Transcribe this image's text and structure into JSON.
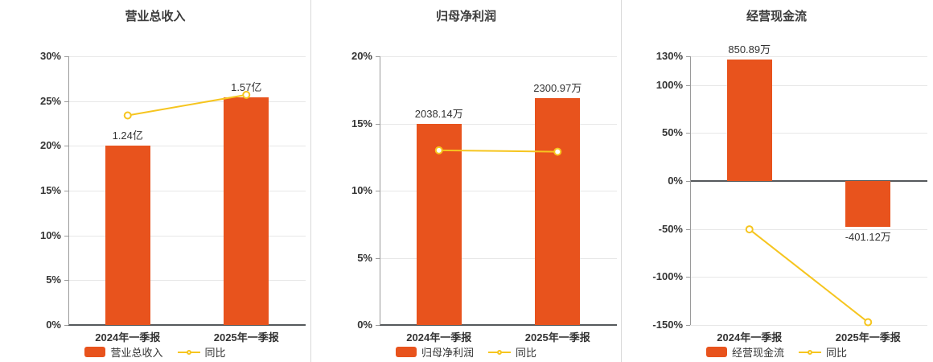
{
  "page": {
    "background": "#ffffff"
  },
  "chart_data": [
    {
      "type": "bar+line",
      "title": "营业总收入",
      "categories": [
        "2024年一季报",
        "2025年一季报"
      ],
      "bar_series": {
        "name": "营业总收入",
        "value_labels": [
          "1.24亿",
          "1.57亿"
        ],
        "display_values_pct": [
          20.0,
          25.4
        ]
      },
      "line_series": {
        "name": "同比",
        "values_pct": [
          23.4,
          25.7
        ]
      },
      "y_axis": {
        "min": 0,
        "max": 30,
        "ticks": [
          0,
          5,
          10,
          15,
          20,
          25,
          30
        ],
        "unit": "%"
      },
      "colors": {
        "bar": "#e8531d",
        "line": "#f6c51f"
      }
    },
    {
      "type": "bar+line",
      "title": "归母净利润",
      "categories": [
        "2024年一季报",
        "2025年一季报"
      ],
      "bar_series": {
        "name": "归母净利润",
        "value_labels": [
          "2038.14万",
          "2300.97万"
        ],
        "display_values_pct": [
          15.0,
          16.9
        ]
      },
      "line_series": {
        "name": "同比",
        "values_pct": [
          13.0,
          12.9
        ]
      },
      "y_axis": {
        "min": 0,
        "max": 20,
        "ticks": [
          0,
          5,
          10,
          15,
          20
        ],
        "unit": "%"
      },
      "colors": {
        "bar": "#e8531d",
        "line": "#f6c51f"
      }
    },
    {
      "type": "bar+line",
      "title": "经营现金流",
      "categories": [
        "2024年一季报",
        "2025年一季报"
      ],
      "bar_series": {
        "name": "经营现金流",
        "value_labels": [
          "850.89万",
          "-401.12万"
        ],
        "display_values_pct": [
          126.5,
          -48.0
        ]
      },
      "line_series": {
        "name": "同比",
        "values_pct": [
          -50.3,
          -147.1
        ]
      },
      "y_axis": {
        "min": -150,
        "max": 130,
        "ticks": [
          -150,
          -100,
          -50,
          0,
          50,
          100,
          130
        ],
        "unit": "%"
      },
      "colors": {
        "bar": "#e8531d",
        "line": "#f6c51f"
      }
    }
  ]
}
